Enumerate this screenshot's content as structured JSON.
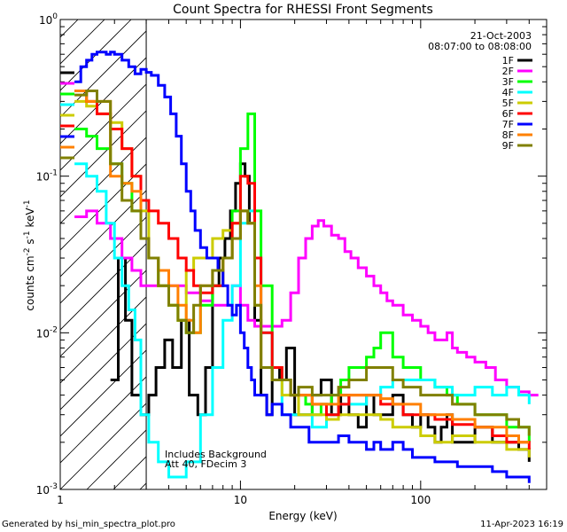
{
  "chart_data": {
    "type": "line",
    "title": "Count Spectra for RHESSI Front Segments",
    "xlabel": "Energy (keV)",
    "ylabel_base": "counts cm",
    "ylabel_exp1": "-2",
    "ylabel_mid1": " s",
    "ylabel_exp2": "-1",
    "ylabel_mid2": " keV",
    "ylabel_exp3": "-1",
    "x_scale": "log",
    "y_scale": "log",
    "xlim": [
      1,
      500
    ],
    "ylim": [
      0.001,
      1
    ],
    "x_ticks": [
      {
        "value": 1,
        "label": "1"
      },
      {
        "value": 10,
        "label": "10"
      },
      {
        "value": 100,
        "label": "100"
      }
    ],
    "y_ticks": [
      {
        "value": 0.001,
        "base": "10",
        "exp": "-3"
      },
      {
        "value": 0.01,
        "base": "10",
        "exp": "-2"
      },
      {
        "value": 0.1,
        "base": "10",
        "exp": "-1"
      },
      {
        "value": 1,
        "base": "10",
        "exp": "0"
      }
    ],
    "legend_position": "top-right",
    "date_text": "21-Oct-2003",
    "time_text": "08:07:00 to 08:08:00",
    "annotation_line1": "Includes Background",
    "annotation_line2": "Att 40, FDecim 3",
    "hatched_region_keV": [
      1,
      3
    ],
    "grid": false,
    "series": [
      {
        "name": "1F",
        "color": "#000000",
        "x": [
          1.9,
          2.1,
          2.3,
          2.5,
          2.8,
          3.1,
          3.4,
          3.8,
          4.2,
          4.7,
          5.2,
          5.8,
          6.4,
          7.0,
          7.6,
          8.2,
          8.8,
          9.4,
          10.0,
          10.6,
          11.2,
          12.0,
          13,
          14,
          15,
          16.5,
          18,
          20,
          22,
          25,
          28,
          32,
          36,
          40,
          45,
          50,
          55,
          60,
          70,
          80,
          90,
          100,
          110,
          120,
          130,
          140,
          150,
          170,
          200,
          250,
          300,
          350,
          400
        ],
        "y": [
          0.005,
          0.03,
          0.012,
          0.004,
          0.003,
          0.004,
          0.006,
          0.009,
          0.006,
          0.012,
          0.004,
          0.003,
          0.006,
          0.02,
          0.03,
          0.04,
          0.06,
          0.09,
          0.12,
          0.1,
          0.05,
          0.012,
          0.004,
          0.003,
          0.006,
          0.005,
          0.008,
          0.003,
          0.003,
          0.004,
          0.005,
          0.003,
          0.004,
          0.003,
          0.0025,
          0.004,
          0.003,
          0.003,
          0.004,
          0.003,
          0.0025,
          0.003,
          0.0025,
          0.002,
          0.0025,
          0.003,
          0.002,
          0.002,
          0.0025,
          0.002,
          0.002,
          0.0018,
          0.0015
        ]
      },
      {
        "name": "2F",
        "color": "#ff00ff",
        "x": [
          1.2,
          1.4,
          1.6,
          1.9,
          2.2,
          2.5,
          2.8,
          3.1,
          3.5,
          4,
          4.5,
          5,
          6,
          7,
          8,
          9,
          10,
          11,
          12,
          13,
          15,
          17,
          19,
          21,
          23,
          25,
          27,
          29,
          32,
          35,
          38,
          41,
          45,
          50,
          55,
          60,
          65,
          70,
          80,
          90,
          100,
          110,
          120,
          130,
          140,
          150,
          160,
          180,
          200,
          230,
          260,
          300,
          350,
          400,
          450
        ],
        "y": [
          0.055,
          0.06,
          0.05,
          0.04,
          0.03,
          0.025,
          0.02,
          0.02,
          0.02,
          0.02,
          0.02,
          0.018,
          0.016,
          0.015,
          0.015,
          0.02,
          0.015,
          0.012,
          0.011,
          0.011,
          0.011,
          0.012,
          0.018,
          0.03,
          0.04,
          0.048,
          0.052,
          0.048,
          0.042,
          0.04,
          0.033,
          0.03,
          0.026,
          0.023,
          0.02,
          0.018,
          0.016,
          0.015,
          0.013,
          0.012,
          0.011,
          0.01,
          0.009,
          0.009,
          0.01,
          0.008,
          0.0075,
          0.007,
          0.0065,
          0.006,
          0.005,
          0.0045,
          0.0042,
          0.004,
          0.004
        ]
      },
      {
        "name": "3F",
        "color": "#00ff00",
        "x": [
          1.2,
          1.4,
          1.6,
          1.9,
          2.2,
          2.5,
          2.8,
          3.1,
          3.5,
          4,
          4.5,
          5,
          6,
          7,
          8,
          9,
          10,
          11,
          12,
          13,
          15,
          17,
          19,
          21,
          23,
          25,
          28,
          32,
          36,
          40,
          45,
          50,
          55,
          60,
          70,
          80,
          90,
          100,
          120,
          140,
          160,
          200,
          250,
          300,
          350,
          400
        ],
        "y": [
          0.2,
          0.18,
          0.15,
          0.12,
          0.09,
          0.06,
          0.04,
          0.03,
          0.02,
          0.015,
          0.012,
          0.01,
          0.015,
          0.02,
          0.03,
          0.06,
          0.15,
          0.25,
          0.06,
          0.02,
          0.006,
          0.005,
          0.004,
          0.004,
          0.0035,
          0.003,
          0.0035,
          0.004,
          0.005,
          0.006,
          0.006,
          0.007,
          0.008,
          0.01,
          0.007,
          0.006,
          0.006,
          0.005,
          0.0045,
          0.004,
          0.0035,
          0.003,
          0.003,
          0.0025,
          0.0025,
          0.002
        ]
      },
      {
        "name": "4F",
        "color": "#00ffff",
        "x": [
          1.2,
          1.4,
          1.6,
          1.8,
          2.0,
          2.2,
          2.4,
          2.6,
          2.8,
          3.1,
          3.5,
          4,
          4.5,
          5,
          6,
          7,
          8,
          9,
          10,
          11,
          12,
          13,
          15,
          17,
          19,
          21,
          25,
          30,
          35,
          40,
          50,
          60,
          70,
          80,
          100,
          120,
          150,
          200,
          250,
          300,
          350,
          400
        ],
        "y": [
          0.12,
          0.1,
          0.08,
          0.05,
          0.03,
          0.02,
          0.014,
          0.009,
          0.003,
          0.002,
          0.0015,
          0.0012,
          0.0012,
          0.0015,
          0.003,
          0.006,
          0.012,
          0.02,
          0.05,
          0.06,
          0.03,
          0.01,
          0.005,
          0.003,
          0.003,
          0.003,
          0.0025,
          0.003,
          0.0035,
          0.0035,
          0.004,
          0.0045,
          0.005,
          0.005,
          0.005,
          0.0045,
          0.004,
          0.0045,
          0.004,
          0.0045,
          0.004,
          0.0035
        ]
      },
      {
        "name": "5F",
        "color": "#cccc00",
        "x": [
          1.2,
          1.4,
          1.6,
          1.9,
          2.2,
          2.5,
          2.8,
          3.1,
          3.5,
          4,
          4.5,
          5,
          5.5,
          6,
          7,
          8,
          9,
          10,
          11,
          12,
          13,
          15,
          17,
          19,
          21,
          25,
          30,
          35,
          40,
          50,
          60,
          70,
          80,
          100,
          120,
          150,
          200,
          250,
          300,
          350,
          400
        ],
        "y": [
          0.3,
          0.28,
          0.25,
          0.22,
          0.15,
          0.1,
          0.06,
          0.03,
          0.02,
          0.015,
          0.012,
          0.025,
          0.03,
          0.03,
          0.04,
          0.045,
          0.05,
          0.06,
          0.05,
          0.015,
          0.006,
          0.005,
          0.004,
          0.004,
          0.003,
          0.003,
          0.0028,
          0.003,
          0.003,
          0.003,
          0.0028,
          0.0025,
          0.0025,
          0.0022,
          0.002,
          0.0022,
          0.002,
          0.002,
          0.0018,
          0.0018,
          0.0016
        ]
      },
      {
        "name": "6F",
        "color": "#ff0000",
        "x": [
          1.2,
          1.4,
          1.6,
          1.9,
          2.2,
          2.5,
          2.8,
          3.1,
          3.5,
          4,
          4.5,
          5,
          5.5,
          6,
          7,
          8,
          9,
          10,
          11,
          12,
          13,
          15,
          17,
          19,
          21,
          25,
          30,
          35,
          40,
          50,
          60,
          70,
          80,
          100,
          120,
          150,
          200,
          250,
          300,
          350,
          400
        ],
        "y": [
          0.35,
          0.3,
          0.25,
          0.2,
          0.15,
          0.1,
          0.07,
          0.06,
          0.05,
          0.04,
          0.03,
          0.025,
          0.02,
          0.018,
          0.02,
          0.03,
          0.05,
          0.1,
          0.09,
          0.03,
          0.01,
          0.006,
          0.005,
          0.004,
          0.004,
          0.0035,
          0.003,
          0.0035,
          0.004,
          0.004,
          0.0035,
          0.0035,
          0.003,
          0.003,
          0.0028,
          0.0026,
          0.0025,
          0.0022,
          0.002,
          0.002,
          0.0018
        ]
      },
      {
        "name": "7F",
        "color": "#0000ff",
        "x": [
          1.2,
          1.3,
          1.4,
          1.5,
          1.6,
          1.7,
          1.8,
          1.9,
          2.0,
          2.2,
          2.4,
          2.6,
          2.8,
          3.0,
          3.2,
          3.5,
          3.8,
          4.1,
          4.4,
          4.7,
          5.0,
          5.3,
          5.6,
          6.0,
          6.5,
          7,
          7.5,
          8,
          8.5,
          9,
          9.5,
          10,
          10.5,
          11,
          11.5,
          12,
          13,
          14,
          15,
          17,
          19,
          21,
          24,
          27,
          30,
          35,
          40,
          45,
          50,
          55,
          60,
          70,
          80,
          90,
          100,
          120,
          140,
          160,
          200,
          250,
          300,
          350,
          400
        ],
        "y": [
          0.4,
          0.5,
          0.55,
          0.6,
          0.62,
          0.62,
          0.6,
          0.62,
          0.6,
          0.55,
          0.5,
          0.45,
          0.48,
          0.46,
          0.44,
          0.38,
          0.32,
          0.25,
          0.18,
          0.12,
          0.08,
          0.06,
          0.045,
          0.035,
          0.03,
          0.03,
          0.025,
          0.02,
          0.015,
          0.013,
          0.015,
          0.01,
          0.008,
          0.006,
          0.005,
          0.004,
          0.004,
          0.003,
          0.0035,
          0.003,
          0.0025,
          0.0025,
          0.002,
          0.002,
          0.002,
          0.0022,
          0.002,
          0.002,
          0.0018,
          0.002,
          0.0018,
          0.002,
          0.0018,
          0.0016,
          0.0016,
          0.0015,
          0.0015,
          0.0014,
          0.0014,
          0.0013,
          0.0012,
          0.0012,
          0.0011
        ]
      },
      {
        "name": "8F",
        "color": "#ff8000",
        "x": [
          1.2,
          1.4,
          1.6,
          1.9,
          2.2,
          2.5,
          2.8,
          3.1,
          3.5,
          4,
          4.5,
          5,
          5.5,
          6,
          7,
          8,
          9,
          10,
          11,
          12,
          13,
          15,
          17,
          19,
          21,
          25,
          30,
          35,
          40,
          50,
          60,
          70,
          80,
          100,
          120,
          150,
          200,
          250,
          300,
          350,
          400
        ],
        "y": [
          0.35,
          0.3,
          0.3,
          0.1,
          0.09,
          0.08,
          0.04,
          0.03,
          0.025,
          0.02,
          0.015,
          0.012,
          0.01,
          0.02,
          0.025,
          0.03,
          0.04,
          0.06,
          0.05,
          0.02,
          0.006,
          0.005,
          0.005,
          0.004,
          0.004,
          0.0035,
          0.0035,
          0.004,
          0.004,
          0.004,
          0.0038,
          0.0035,
          0.0035,
          0.003,
          0.003,
          0.0028,
          0.0025,
          0.0025,
          0.0022,
          0.002,
          0.002
        ]
      },
      {
        "name": "9F",
        "color": "#808000",
        "x": [
          1.2,
          1.4,
          1.6,
          1.9,
          2.2,
          2.5,
          2.8,
          3.1,
          3.5,
          4,
          4.5,
          5,
          5.5,
          6,
          7,
          8,
          9,
          10,
          11,
          12,
          13,
          15,
          17,
          19,
          21,
          25,
          30,
          35,
          40,
          50,
          60,
          70,
          80,
          100,
          120,
          150,
          200,
          250,
          300,
          350,
          400
        ],
        "y": [
          0.33,
          0.35,
          0.3,
          0.12,
          0.07,
          0.06,
          0.04,
          0.03,
          0.02,
          0.015,
          0.012,
          0.01,
          0.015,
          0.02,
          0.025,
          0.03,
          0.04,
          0.06,
          0.05,
          0.015,
          0.006,
          0.005,
          0.005,
          0.004,
          0.0045,
          0.004,
          0.004,
          0.0045,
          0.005,
          0.006,
          0.006,
          0.005,
          0.0045,
          0.004,
          0.004,
          0.0035,
          0.003,
          0.003,
          0.0028,
          0.0025,
          0.0022
        ]
      }
    ]
  },
  "footer": {
    "generated_by": "Generated by hsi_min_spectra_plot.pro",
    "timestamp": "11-Apr-2023 16:19"
  }
}
